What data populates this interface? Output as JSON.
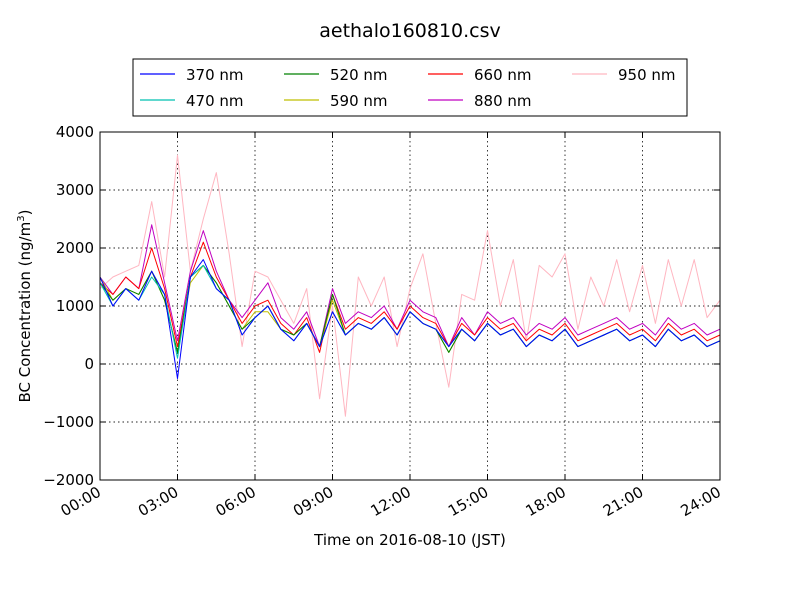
{
  "chart_data": {
    "type": "line",
    "title": "aethalo160810.csv",
    "xlabel": "Time on 2016-08-10 (JST)",
    "ylabel_main": "BC Concentration (ng/m",
    "ylabel_sup": "3",
    "ylabel_close": ")",
    "xlim_hours": [
      0,
      24
    ],
    "ylim": [
      -2000,
      4000
    ],
    "x_ticks": [
      {
        "hour": 0,
        "label": "00:00"
      },
      {
        "hour": 3,
        "label": "03:00"
      },
      {
        "hour": 6,
        "label": "06:00"
      },
      {
        "hour": 9,
        "label": "09:00"
      },
      {
        "hour": 12,
        "label": "12:00"
      },
      {
        "hour": 15,
        "label": "15:00"
      },
      {
        "hour": 18,
        "label": "18:00"
      },
      {
        "hour": 21,
        "label": "21:00"
      },
      {
        "hour": 24,
        "label": "24:00"
      }
    ],
    "y_ticks": [
      {
        "value": -2000,
        "label": "−2000"
      },
      {
        "value": -1000,
        "label": "−1000"
      },
      {
        "value": 0,
        "label": "0"
      },
      {
        "value": 1000,
        "label": "1000"
      },
      {
        "value": 2000,
        "label": "2000"
      },
      {
        "value": 3000,
        "label": "3000"
      },
      {
        "value": 4000,
        "label": "4000"
      }
    ],
    "grid": true,
    "legend_position": "top-center",
    "hours": [
      0.0,
      0.5,
      1.0,
      1.5,
      2.0,
      2.5,
      3.0,
      3.5,
      4.0,
      4.5,
      5.0,
      5.5,
      6.0,
      6.5,
      7.0,
      7.5,
      8.0,
      8.5,
      9.0,
      9.5,
      10.0,
      10.5,
      11.0,
      11.5,
      12.0,
      12.5,
      13.0,
      13.5,
      14.0,
      14.5,
      15.0,
      15.5,
      16.0,
      16.5,
      17.0,
      17.5,
      18.0,
      18.5,
      19.0,
      19.5,
      20.0,
      20.5,
      21.0,
      21.5,
      22.0,
      22.5,
      23.0,
      23.5,
      24.0
    ],
    "series": [
      {
        "name": "370 nm",
        "color": "#0000ff",
        "values": [
          1500,
          1000,
          1300,
          1100,
          1600,
          1200,
          -250,
          1500,
          1800,
          1300,
          1100,
          500,
          800,
          1000,
          600,
          400,
          700,
          300,
          900,
          500,
          700,
          600,
          800,
          500,
          900,
          700,
          600,
          300,
          600,
          400,
          700,
          500,
          600,
          300,
          500,
          400,
          600,
          300,
          400,
          500,
          600,
          400,
          500,
          300,
          600,
          400,
          500,
          300,
          400
        ]
      },
      {
        "name": "470 nm",
        "color": "#00c0b0",
        "values": [
          1400,
          1000,
          1300,
          1100,
          1500,
          1200,
          100,
          1500,
          1700,
          1300,
          1100,
          500,
          800,
          1000,
          600,
          400,
          700,
          300,
          900,
          500,
          700,
          600,
          800,
          500,
          900,
          700,
          600,
          300,
          600,
          400,
          700,
          500,
          600,
          300,
          500,
          400,
          600,
          300,
          400,
          500,
          600,
          400,
          500,
          300,
          600,
          400,
          500,
          300,
          400
        ]
      },
      {
        "name": "520 nm",
        "color": "#008000",
        "values": [
          1400,
          1100,
          1300,
          1200,
          1600,
          1100,
          200,
          1500,
          1700,
          1400,
          1000,
          600,
          800,
          1000,
          600,
          500,
          700,
          300,
          1200,
          500,
          700,
          600,
          800,
          500,
          900,
          700,
          600,
          200,
          600,
          400,
          700,
          500,
          600,
          300,
          500,
          400,
          600,
          300,
          400,
          500,
          600,
          400,
          500,
          300,
          600,
          400,
          500,
          300,
          400
        ]
      },
      {
        "name": "590 nm",
        "color": "#bfbf00",
        "values": [
          1500,
          1100,
          1300,
          1200,
          1600,
          1100,
          200,
          1400,
          1700,
          1400,
          1000,
          600,
          900,
          900,
          600,
          500,
          700,
          300,
          1100,
          500,
          700,
          600,
          800,
          500,
          900,
          700,
          600,
          200,
          600,
          400,
          700,
          500,
          600,
          300,
          500,
          400,
          600,
          300,
          400,
          500,
          600,
          400,
          500,
          300,
          600,
          400,
          500,
          300,
          400
        ]
      },
      {
        "name": "660 nm",
        "color": "#ff0000",
        "values": [
          1400,
          1200,
          1500,
          1300,
          2000,
          1300,
          300,
          1500,
          2100,
          1500,
          1100,
          700,
          1000,
          1100,
          700,
          500,
          800,
          200,
          1200,
          600,
          800,
          700,
          900,
          600,
          1000,
          800,
          700,
          300,
          700,
          500,
          800,
          600,
          700,
          400,
          600,
          500,
          700,
          400,
          500,
          600,
          700,
          500,
          600,
          400,
          700,
          500,
          600,
          400,
          500
        ]
      },
      {
        "name": "880 nm",
        "color": "#c000c0",
        "values": [
          1500,
          1200,
          1500,
          1300,
          2400,
          1400,
          400,
          1600,
          2300,
          1600,
          1100,
          800,
          1100,
          1400,
          800,
          600,
          900,
          300,
          1300,
          700,
          900,
          800,
          1000,
          600,
          1100,
          900,
          800,
          300,
          800,
          500,
          900,
          700,
          800,
          500,
          700,
          600,
          800,
          500,
          600,
          700,
          800,
          600,
          700,
          500,
          800,
          600,
          700,
          500,
          600
        ]
      },
      {
        "name": "950 nm",
        "color": "#ffb6c1",
        "values": [
          1300,
          1500,
          1600,
          1700,
          2800,
          1500,
          3600,
          1600,
          2500,
          3300,
          1900,
          300,
          1600,
          1500,
          1100,
          700,
          1300,
          -600,
          1000,
          -900,
          1500,
          1000,
          1500,
          300,
          1300,
          1900,
          700,
          -400,
          1200,
          1100,
          2300,
          1000,
          1800,
          400,
          1700,
          1500,
          1900,
          600,
          1500,
          1000,
          1800,
          900,
          1700,
          700,
          1800,
          1000,
          1800,
          800,
          1100
        ]
      }
    ]
  }
}
